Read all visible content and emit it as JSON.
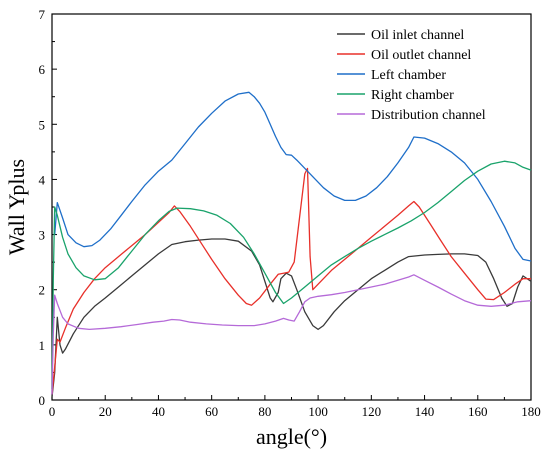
{
  "chart_data": {
    "type": "line",
    "title": "",
    "xlabel": "angle(°)",
    "ylabel": "Wall Yplus",
    "xlim": [
      0,
      180
    ],
    "ylim": [
      0,
      7
    ],
    "xticks": [
      0,
      20,
      40,
      60,
      80,
      100,
      120,
      140,
      160,
      180
    ],
    "yticks": [
      0,
      1,
      2,
      3,
      4,
      5,
      6,
      7
    ],
    "grid": false,
    "legend_position": "top-right",
    "series": [
      {
        "name": "Oil inlet channel",
        "color": "#3a3a3a",
        "points": [
          [
            0,
            0.05
          ],
          [
            1,
            0.5
          ],
          [
            2,
            1.5
          ],
          [
            3,
            1.0
          ],
          [
            4,
            0.85
          ],
          [
            5,
            0.92
          ],
          [
            8,
            1.2
          ],
          [
            12,
            1.5
          ],
          [
            16,
            1.7
          ],
          [
            20,
            1.85
          ],
          [
            25,
            2.05
          ],
          [
            30,
            2.25
          ],
          [
            35,
            2.45
          ],
          [
            40,
            2.65
          ],
          [
            45,
            2.82
          ],
          [
            50,
            2.87
          ],
          [
            55,
            2.9
          ],
          [
            60,
            2.92
          ],
          [
            65,
            2.92
          ],
          [
            70,
            2.88
          ],
          [
            75,
            2.7
          ],
          [
            78,
            2.45
          ],
          [
            80,
            2.15
          ],
          [
            82,
            1.85
          ],
          [
            83,
            1.78
          ],
          [
            85,
            1.95
          ],
          [
            86,
            2.2
          ],
          [
            88,
            2.3
          ],
          [
            90,
            2.25
          ],
          [
            92,
            2.0
          ],
          [
            95,
            1.6
          ],
          [
            98,
            1.35
          ],
          [
            100,
            1.28
          ],
          [
            102,
            1.35
          ],
          [
            106,
            1.6
          ],
          [
            110,
            1.8
          ],
          [
            115,
            2.0
          ],
          [
            120,
            2.2
          ],
          [
            125,
            2.35
          ],
          [
            130,
            2.5
          ],
          [
            134,
            2.6
          ],
          [
            140,
            2.63
          ],
          [
            145,
            2.64
          ],
          [
            150,
            2.65
          ],
          [
            155,
            2.65
          ],
          [
            160,
            2.62
          ],
          [
            163,
            2.5
          ],
          [
            166,
            2.2
          ],
          [
            169,
            1.85
          ],
          [
            171,
            1.7
          ],
          [
            173,
            1.75
          ],
          [
            175,
            2.05
          ],
          [
            177,
            2.25
          ],
          [
            180,
            2.15
          ]
        ]
      },
      {
        "name": "Oil outlet channel",
        "color": "#e8302a",
        "points": [
          [
            0,
            0.1
          ],
          [
            1,
            0.6
          ],
          [
            2,
            1.1
          ],
          [
            3,
            1.05
          ],
          [
            5,
            1.3
          ],
          [
            8,
            1.65
          ],
          [
            12,
            1.95
          ],
          [
            16,
            2.2
          ],
          [
            20,
            2.4
          ],
          [
            25,
            2.6
          ],
          [
            30,
            2.8
          ],
          [
            35,
            3.0
          ],
          [
            40,
            3.22
          ],
          [
            44,
            3.4
          ],
          [
            46,
            3.52
          ],
          [
            48,
            3.42
          ],
          [
            52,
            3.15
          ],
          [
            56,
            2.85
          ],
          [
            60,
            2.55
          ],
          [
            65,
            2.2
          ],
          [
            70,
            1.9
          ],
          [
            73,
            1.75
          ],
          [
            75,
            1.72
          ],
          [
            78,
            1.85
          ],
          [
            82,
            2.1
          ],
          [
            85,
            2.28
          ],
          [
            87,
            2.3
          ],
          [
            89,
            2.32
          ],
          [
            91,
            2.5
          ],
          [
            93,
            3.3
          ],
          [
            95,
            4.1
          ],
          [
            96,
            4.2
          ],
          [
            97,
            2.6
          ],
          [
            98,
            2.0
          ],
          [
            100,
            2.1
          ],
          [
            105,
            2.35
          ],
          [
            110,
            2.55
          ],
          [
            115,
            2.75
          ],
          [
            120,
            2.95
          ],
          [
            125,
            3.15
          ],
          [
            130,
            3.35
          ],
          [
            134,
            3.52
          ],
          [
            136,
            3.6
          ],
          [
            138,
            3.5
          ],
          [
            142,
            3.2
          ],
          [
            146,
            2.9
          ],
          [
            150,
            2.6
          ],
          [
            155,
            2.3
          ],
          [
            160,
            2.0
          ],
          [
            163,
            1.83
          ],
          [
            166,
            1.82
          ],
          [
            170,
            1.95
          ],
          [
            174,
            2.1
          ],
          [
            177,
            2.2
          ],
          [
            180,
            2.2
          ]
        ]
      },
      {
        "name": "Left chamber",
        "color": "#1f6fc9",
        "points": [
          [
            1,
            3.0
          ],
          [
            2,
            3.58
          ],
          [
            4,
            3.3
          ],
          [
            6,
            3.0
          ],
          [
            9,
            2.85
          ],
          [
            12,
            2.78
          ],
          [
            15,
            2.8
          ],
          [
            18,
            2.9
          ],
          [
            22,
            3.1
          ],
          [
            26,
            3.35
          ],
          [
            30,
            3.6
          ],
          [
            35,
            3.9
          ],
          [
            40,
            4.15
          ],
          [
            45,
            4.35
          ],
          [
            50,
            4.65
          ],
          [
            55,
            4.95
          ],
          [
            60,
            5.2
          ],
          [
            65,
            5.42
          ],
          [
            70,
            5.55
          ],
          [
            74,
            5.58
          ],
          [
            76,
            5.5
          ],
          [
            78,
            5.38
          ],
          [
            80,
            5.22
          ],
          [
            82,
            5.0
          ],
          [
            84,
            4.78
          ],
          [
            86,
            4.58
          ],
          [
            88,
            4.45
          ],
          [
            90,
            4.44
          ],
          [
            92,
            4.35
          ],
          [
            94,
            4.25
          ],
          [
            98,
            4.05
          ],
          [
            102,
            3.85
          ],
          [
            106,
            3.7
          ],
          [
            110,
            3.62
          ],
          [
            114,
            3.62
          ],
          [
            118,
            3.7
          ],
          [
            122,
            3.85
          ],
          [
            126,
            4.05
          ],
          [
            130,
            4.3
          ],
          [
            134,
            4.58
          ],
          [
            136,
            4.77
          ],
          [
            140,
            4.75
          ],
          [
            145,
            4.65
          ],
          [
            150,
            4.5
          ],
          [
            155,
            4.3
          ],
          [
            160,
            4.0
          ],
          [
            165,
            3.6
          ],
          [
            170,
            3.15
          ],
          [
            174,
            2.75
          ],
          [
            177,
            2.55
          ],
          [
            180,
            2.52
          ]
        ]
      },
      {
        "name": "Right chamber",
        "color": "#1aa36b",
        "points": [
          [
            0,
            0.2
          ],
          [
            0.5,
            2.2
          ],
          [
            1,
            3.5
          ],
          [
            2,
            3.35
          ],
          [
            4,
            2.95
          ],
          [
            6,
            2.65
          ],
          [
            9,
            2.4
          ],
          [
            12,
            2.25
          ],
          [
            16,
            2.18
          ],
          [
            20,
            2.2
          ],
          [
            25,
            2.4
          ],
          [
            30,
            2.7
          ],
          [
            35,
            3.0
          ],
          [
            40,
            3.25
          ],
          [
            44,
            3.42
          ],
          [
            47,
            3.48
          ],
          [
            52,
            3.47
          ],
          [
            57,
            3.43
          ],
          [
            62,
            3.35
          ],
          [
            67,
            3.2
          ],
          [
            72,
            2.95
          ],
          [
            76,
            2.65
          ],
          [
            80,
            2.3
          ],
          [
            84,
            1.95
          ],
          [
            87,
            1.75
          ],
          [
            90,
            1.85
          ],
          [
            95,
            2.05
          ],
          [
            100,
            2.25
          ],
          [
            105,
            2.45
          ],
          [
            110,
            2.6
          ],
          [
            115,
            2.75
          ],
          [
            120,
            2.88
          ],
          [
            125,
            3.0
          ],
          [
            130,
            3.12
          ],
          [
            135,
            3.25
          ],
          [
            140,
            3.4
          ],
          [
            145,
            3.58
          ],
          [
            150,
            3.78
          ],
          [
            155,
            3.98
          ],
          [
            160,
            4.15
          ],
          [
            165,
            4.28
          ],
          [
            170,
            4.33
          ],
          [
            174,
            4.3
          ],
          [
            177,
            4.22
          ],
          [
            180,
            4.17
          ]
        ]
      },
      {
        "name": "Distribution channel",
        "color": "#b56ad8",
        "points": [
          [
            0,
            0.1
          ],
          [
            0.5,
            1.2
          ],
          [
            1,
            1.9
          ],
          [
            2,
            1.75
          ],
          [
            4,
            1.5
          ],
          [
            6,
            1.38
          ],
          [
            10,
            1.3
          ],
          [
            14,
            1.28
          ],
          [
            20,
            1.3
          ],
          [
            26,
            1.33
          ],
          [
            32,
            1.37
          ],
          [
            38,
            1.41
          ],
          [
            42,
            1.43
          ],
          [
            45,
            1.46
          ],
          [
            48,
            1.45
          ],
          [
            52,
            1.41
          ],
          [
            58,
            1.38
          ],
          [
            64,
            1.36
          ],
          [
            70,
            1.35
          ],
          [
            76,
            1.35
          ],
          [
            80,
            1.38
          ],
          [
            84,
            1.43
          ],
          [
            87,
            1.48
          ],
          [
            89,
            1.45
          ],
          [
            91,
            1.43
          ],
          [
            93,
            1.6
          ],
          [
            95,
            1.78
          ],
          [
            97,
            1.85
          ],
          [
            100,
            1.88
          ],
          [
            105,
            1.91
          ],
          [
            110,
            1.95
          ],
          [
            115,
            2.0
          ],
          [
            120,
            2.05
          ],
          [
            125,
            2.1
          ],
          [
            130,
            2.17
          ],
          [
            134,
            2.23
          ],
          [
            136,
            2.27
          ],
          [
            140,
            2.17
          ],
          [
            145,
            2.05
          ],
          [
            150,
            1.92
          ],
          [
            155,
            1.8
          ],
          [
            160,
            1.72
          ],
          [
            165,
            1.7
          ],
          [
            170,
            1.72
          ],
          [
            175,
            1.78
          ],
          [
            180,
            1.8
          ]
        ]
      }
    ]
  }
}
